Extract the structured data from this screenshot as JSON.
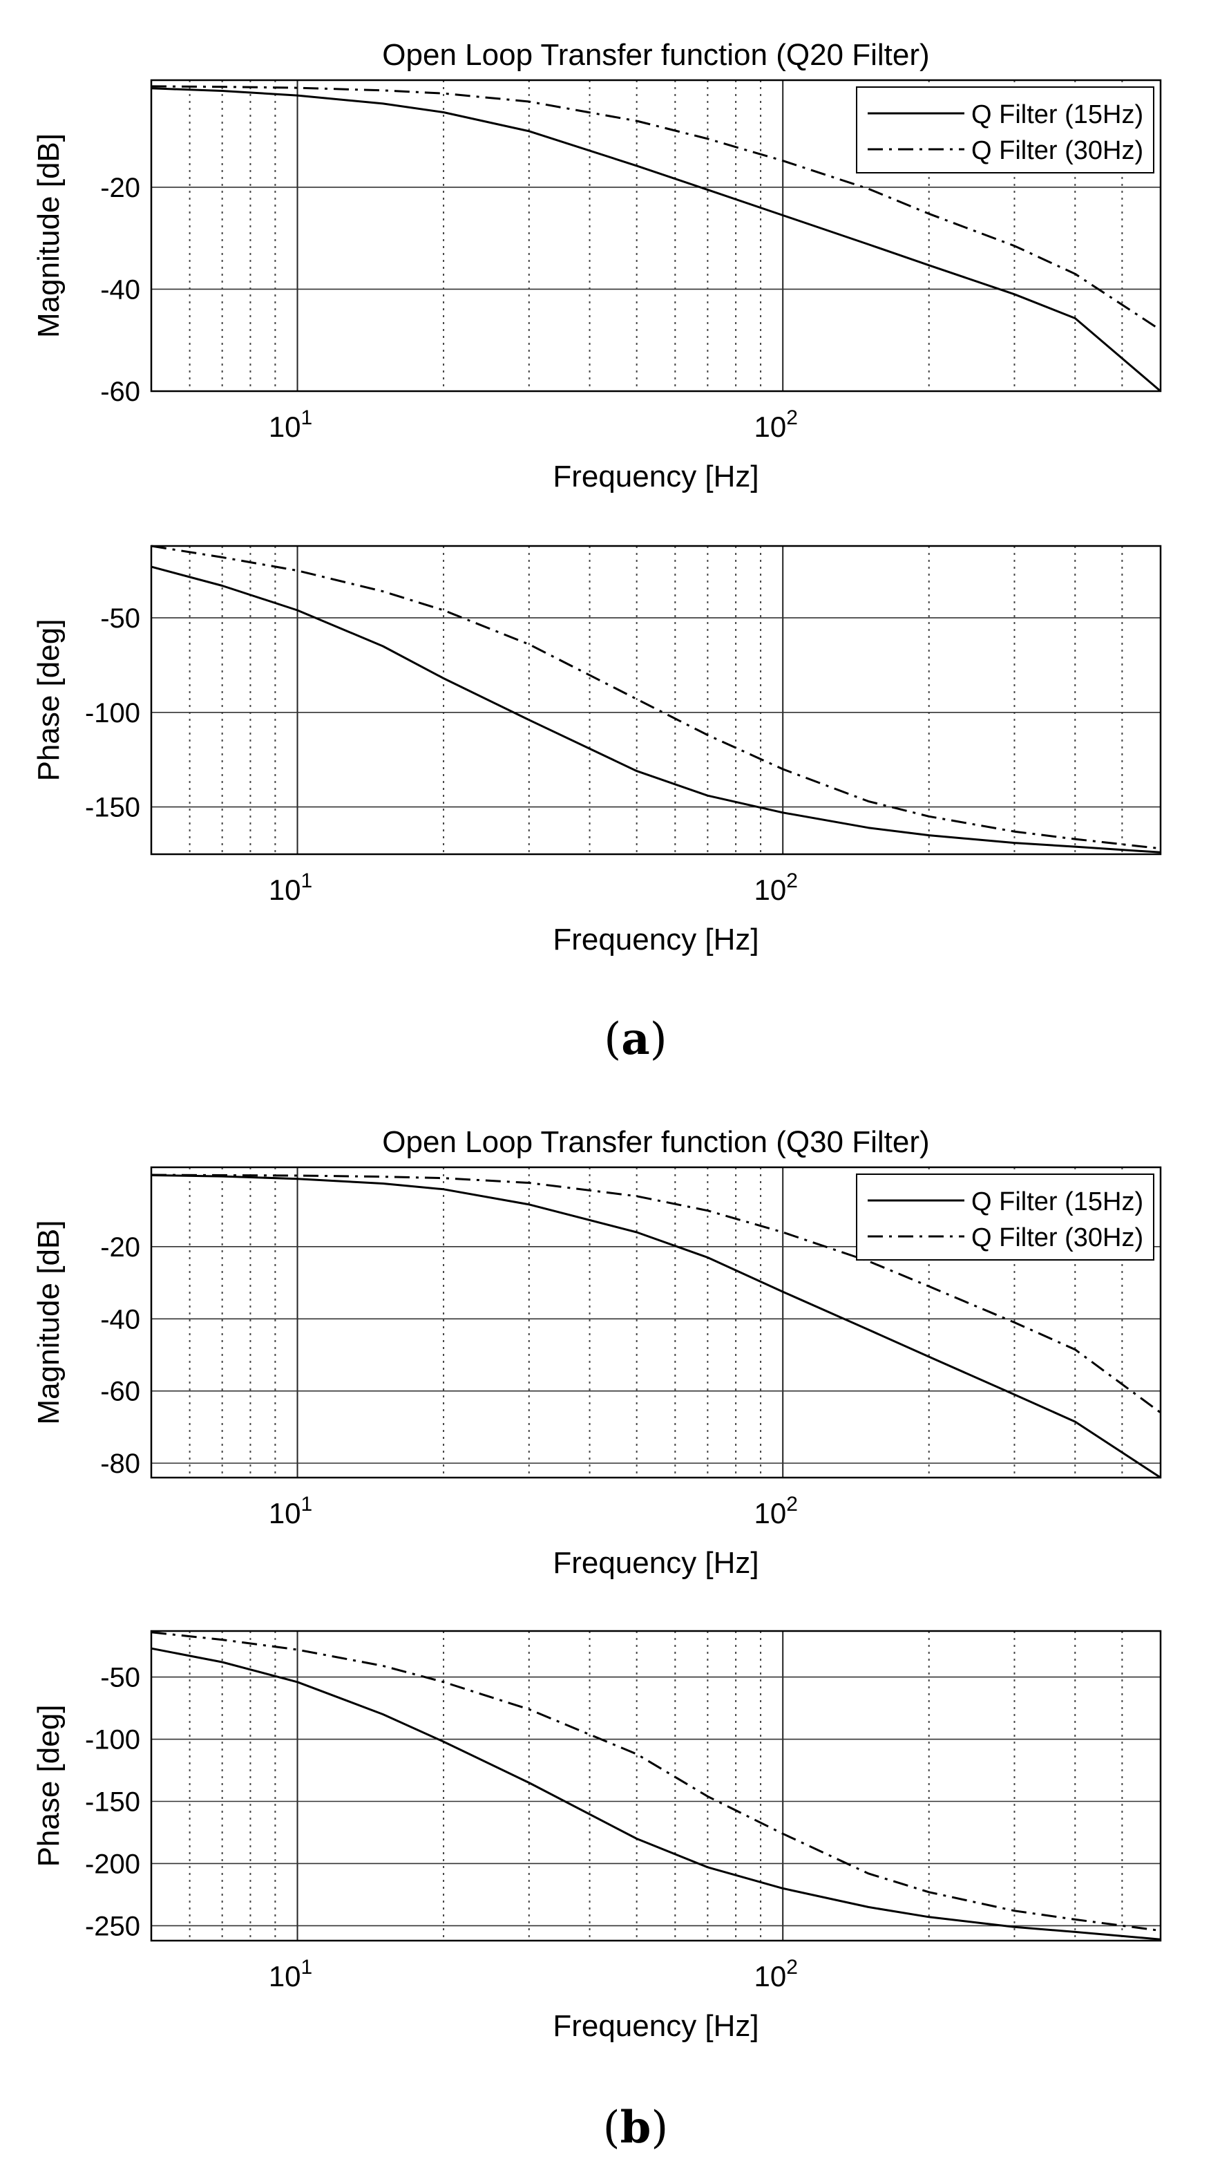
{
  "figure_labels": {
    "a": "a",
    "b": "b"
  },
  "chart_data": [
    {
      "id": "a-mag",
      "type": "line",
      "title": "Open Loop Transfer function (Q20 Filter)",
      "xlabel": "Frequency [Hz]",
      "ylabel": "Magnitude [dB]",
      "xscale": "log",
      "xlim": [
        5,
        600
      ],
      "ylim": [
        -60,
        1
      ],
      "xticks": [
        {
          "value": 10,
          "base": "10",
          "exp": "1"
        },
        {
          "value": 100,
          "base": "10",
          "exp": "2"
        }
      ],
      "yticks": [
        {
          "value": -20,
          "label": "-20"
        },
        {
          "value": -40,
          "label": "-40"
        },
        {
          "value": -60,
          "label": "-60"
        }
      ],
      "grid": true,
      "legend": "top-right",
      "series": [
        {
          "name": "Q Filter (15Hz)",
          "style": "solid",
          "x": [
            5,
            7,
            10,
            15,
            20,
            30,
            50,
            70,
            100,
            150,
            200,
            300,
            400,
            600
          ],
          "y": [
            -0.6,
            -1.1,
            -2.0,
            -3.6,
            -5.3,
            -9.0,
            -15.8,
            -20.5,
            -25.5,
            -31.2,
            -35.3,
            -41.0,
            -45.7,
            -60.0
          ]
        },
        {
          "name": "Q Filter (30Hz)",
          "style": "dashdot",
          "x": [
            5,
            7,
            10,
            15,
            20,
            30,
            50,
            70,
            100,
            150,
            200,
            300,
            400,
            600
          ],
          "y": [
            -0.2,
            -0.3,
            -0.5,
            -1.0,
            -1.6,
            -3.2,
            -7.0,
            -10.5,
            -14.8,
            -20.3,
            -25.2,
            -31.5,
            -37.0,
            -48.0
          ]
        }
      ]
    },
    {
      "id": "a-phase",
      "type": "line",
      "title": "",
      "xlabel": "Frequency [Hz]",
      "ylabel": "Phase [deg]",
      "xscale": "log",
      "xlim": [
        5,
        600
      ],
      "ylim": [
        -175,
        -12
      ],
      "xticks": [
        {
          "value": 10,
          "base": "10",
          "exp": "1"
        },
        {
          "value": 100,
          "base": "10",
          "exp": "2"
        }
      ],
      "yticks": [
        {
          "value": -50,
          "label": "-50"
        },
        {
          "value": -100,
          "label": "-100"
        },
        {
          "value": -150,
          "label": "-150"
        }
      ],
      "grid": true,
      "legend": "",
      "series": [
        {
          "name": "Q Filter (15Hz)",
          "style": "solid",
          "x": [
            5,
            7,
            10,
            15,
            20,
            30,
            50,
            70,
            100,
            150,
            200,
            300,
            400,
            600
          ],
          "y": [
            -23,
            -33,
            -46,
            -65,
            -82,
            -104,
            -131,
            -144,
            -153,
            -161,
            -165,
            -169,
            -171,
            -174
          ]
        },
        {
          "name": "Q Filter (30Hz)",
          "style": "dashdot",
          "x": [
            5,
            7,
            10,
            15,
            20,
            30,
            50,
            70,
            100,
            150,
            200,
            300,
            400,
            600
          ],
          "y": [
            -12,
            -18,
            -25,
            -36,
            -46,
            -64,
            -93,
            -112,
            -130,
            -147,
            -155,
            -163,
            -167,
            -172
          ]
        }
      ]
    },
    {
      "id": "b-mag",
      "type": "line",
      "title": "Open Loop Transfer function (Q30 Filter)",
      "xlabel": "Frequency [Hz]",
      "ylabel": "Magnitude [dB]",
      "xscale": "log",
      "xlim": [
        5,
        600
      ],
      "ylim": [
        -84,
        2
      ],
      "xticks": [
        {
          "value": 10,
          "base": "10",
          "exp": "1"
        },
        {
          "value": 100,
          "base": "10",
          "exp": "2"
        }
      ],
      "yticks": [
        {
          "value": -20,
          "label": "-20"
        },
        {
          "value": -40,
          "label": "-40"
        },
        {
          "value": -60,
          "label": "-60"
        },
        {
          "value": -80,
          "label": "-80"
        }
      ],
      "grid": true,
      "legend": "top-right",
      "series": [
        {
          "name": "Q Filter (15Hz)",
          "style": "solid",
          "x": [
            5,
            7,
            10,
            15,
            20,
            30,
            50,
            70,
            100,
            150,
            200,
            300,
            400,
            600
          ],
          "y": [
            -0.2,
            -0.5,
            -1.2,
            -2.5,
            -4.1,
            -8.3,
            -16.0,
            -23.0,
            -32.5,
            -43.0,
            -50.5,
            -61.0,
            -68.5,
            -84.0
          ]
        },
        {
          "name": "Q Filter (30Hz)",
          "style": "dashdot",
          "x": [
            5,
            7,
            10,
            15,
            20,
            30,
            50,
            70,
            100,
            150,
            200,
            300,
            400,
            600
          ],
          "y": [
            -0.1,
            -0.2,
            -0.3,
            -0.6,
            -1.0,
            -2.3,
            -6.0,
            -10.0,
            -16.0,
            -24.0,
            -31.0,
            -41.0,
            -48.5,
            -66.0
          ]
        }
      ]
    },
    {
      "id": "b-phase",
      "type": "line",
      "title": "",
      "xlabel": "Frequency [Hz]",
      "ylabel": "Phase [deg]",
      "xscale": "log",
      "xlim": [
        5,
        600
      ],
      "ylim": [
        -262,
        -13
      ],
      "xticks": [
        {
          "value": 10,
          "base": "10",
          "exp": "1"
        },
        {
          "value": 100,
          "base": "10",
          "exp": "2"
        }
      ],
      "yticks": [
        {
          "value": -50,
          "label": "-50"
        },
        {
          "value": -100,
          "label": "-100"
        },
        {
          "value": -150,
          "label": "-150"
        },
        {
          "value": -200,
          "label": "-200"
        },
        {
          "value": -250,
          "label": "-250"
        }
      ],
      "grid": true,
      "legend": "",
      "series": [
        {
          "name": "Q Filter (15Hz)",
          "style": "solid",
          "x": [
            5,
            7,
            10,
            15,
            20,
            30,
            50,
            70,
            100,
            150,
            200,
            300,
            400,
            600
          ],
          "y": [
            -27,
            -38,
            -54,
            -80,
            -102,
            -135,
            -180,
            -203,
            -220,
            -235,
            -243,
            -251,
            -255,
            -261
          ]
        },
        {
          "name": "Q Filter (30Hz)",
          "style": "dashdot",
          "x": [
            5,
            7,
            10,
            15,
            20,
            30,
            50,
            70,
            100,
            150,
            200,
            300,
            400,
            600
          ],
          "y": [
            -14,
            -20,
            -28,
            -41,
            -54,
            -76,
            -112,
            -146,
            -176,
            -208,
            -223,
            -238,
            -245,
            -254
          ]
        }
      ]
    }
  ]
}
